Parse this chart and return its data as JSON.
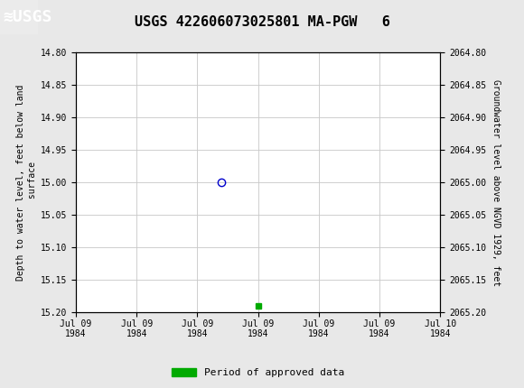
{
  "title": "USGS 422606073025801 MA-PGW   6",
  "ylabel_left": "Depth to water level, feet below land\n surface",
  "ylabel_right": "Groundwater level above NGVD 1929, feet",
  "ylim_left": [
    14.8,
    15.2
  ],
  "ylim_right": [
    2065.2,
    2064.8
  ],
  "yticks_left": [
    14.8,
    14.85,
    14.9,
    14.95,
    15.0,
    15.05,
    15.1,
    15.15,
    15.2
  ],
  "yticks_right": [
    2065.2,
    2065.15,
    2065.1,
    2065.05,
    2065.0,
    2064.95,
    2064.9,
    2064.85,
    2064.8
  ],
  "xlim": [
    718641.0,
    718642.0
  ],
  "xtick_positions": [
    718641.0,
    718641.1667,
    718641.3333,
    718641.5,
    718641.6667,
    718641.8333,
    718642.0
  ],
  "xtick_labels": [
    "Jul 09\n1984",
    "Jul 09\n1984",
    "Jul 09\n1984",
    "Jul 09\n1984",
    "Jul 09\n1984",
    "Jul 09\n1984",
    "Jul 10\n1984"
  ],
  "blue_point_x": 718641.4,
  "blue_point_y": 15.0,
  "green_point_x": 718641.5,
  "green_point_y": 15.19,
  "header_color": "#1a7040",
  "grid_color": "#c8c8c8",
  "background_color": "#e8e8e8",
  "plot_bg_color": "#ffffff",
  "legend_label": "Period of approved data",
  "legend_color": "#00aa00",
  "blue_marker_color": "#0000cc",
  "font_size_ticks": 7,
  "font_size_title": 11,
  "font_size_label": 7,
  "font_size_legend": 8
}
